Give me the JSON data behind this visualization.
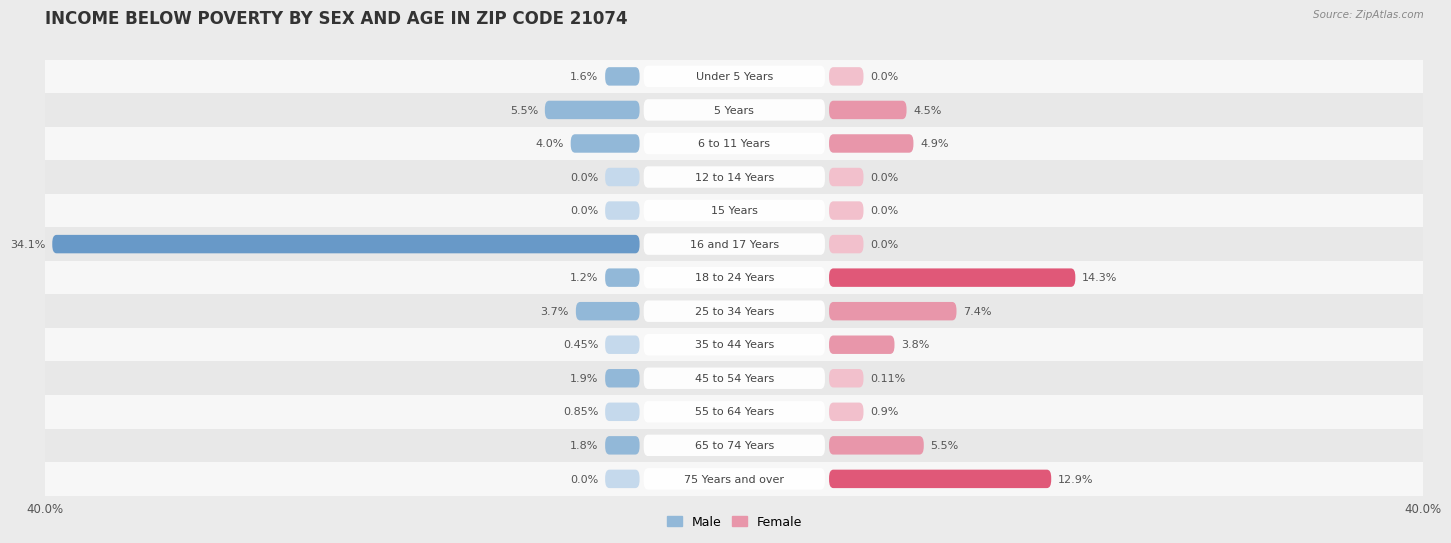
{
  "title": "INCOME BELOW POVERTY BY SEX AND AGE IN ZIP CODE 21074",
  "source": "Source: ZipAtlas.com",
  "categories": [
    "Under 5 Years",
    "5 Years",
    "6 to 11 Years",
    "12 to 14 Years",
    "15 Years",
    "16 and 17 Years",
    "18 to 24 Years",
    "25 to 34 Years",
    "35 to 44 Years",
    "45 to 54 Years",
    "55 to 64 Years",
    "65 to 74 Years",
    "75 Years and over"
  ],
  "male": [
    1.6,
    5.5,
    4.0,
    0.0,
    0.0,
    34.1,
    1.2,
    3.7,
    0.45,
    1.9,
    0.85,
    1.8,
    0.0
  ],
  "female": [
    0.0,
    4.5,
    4.9,
    0.0,
    0.0,
    0.0,
    14.3,
    7.4,
    3.8,
    0.11,
    0.9,
    5.5,
    12.9
  ],
  "male_color": "#92b8d8",
  "female_color": "#e896aa",
  "male_color_strong": "#6899c8",
  "female_color_strong": "#e05878",
  "male_color_light": "#c5d9ec",
  "female_color_light": "#f2c0cc",
  "xlim": 40.0,
  "min_bar": 2.0,
  "background_color": "#ebebeb",
  "row_bg_odd": "#f7f7f7",
  "row_bg_even": "#e8e8e8",
  "title_fontsize": 12,
  "label_fontsize": 8,
  "category_fontsize": 8,
  "axis_fontsize": 8.5,
  "legend_fontsize": 9
}
